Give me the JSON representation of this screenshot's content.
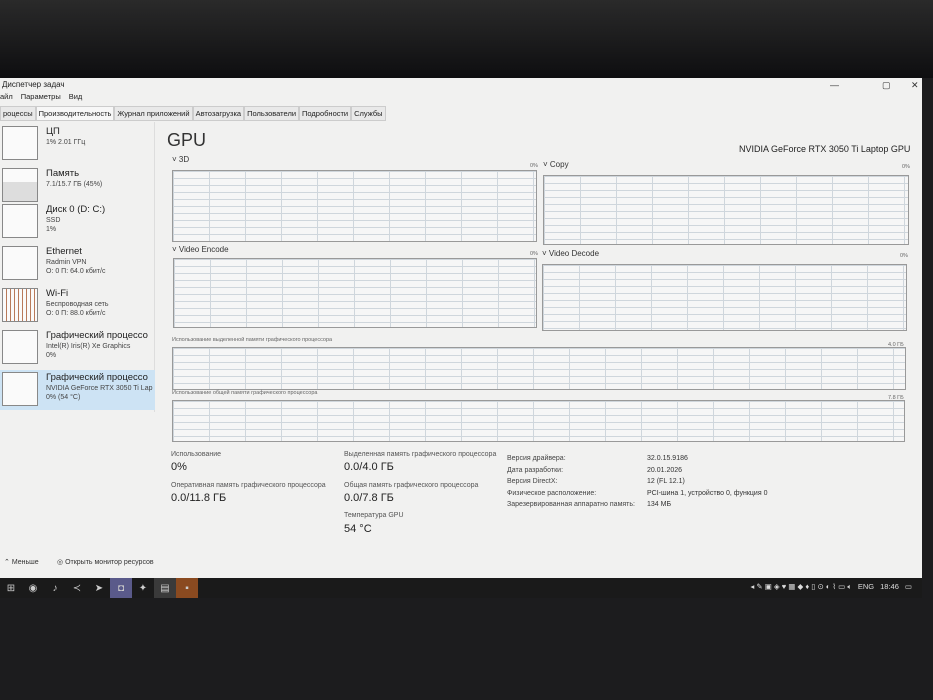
{
  "window": {
    "title": "Диспетчер задач",
    "controls": [
      "—",
      "▢",
      "✕"
    ]
  },
  "menu": [
    "айл",
    "Параметры",
    "Вид"
  ],
  "tabs": [
    "роцессы",
    "Производительность",
    "Журнал приложений",
    "Автозагрузка",
    "Пользователи",
    "Подробности",
    "Службы"
  ],
  "sidebar": [
    {
      "name": "ЦП",
      "l1": "1% 2.01 ГГц",
      "l2": ""
    },
    {
      "name": "Память",
      "l1": "7.1/15.7 ГБ (45%)",
      "l2": ""
    },
    {
      "name": "Диск 0 (D: C:)",
      "l1": "SSD",
      "l2": "1%"
    },
    {
      "name": "Ethernet",
      "l1": "Radmin VPN",
      "l2": "О: 0 П: 64.0 кбит/с"
    },
    {
      "name": "Wi-Fi",
      "l1": "Беспроводная сеть",
      "l2": "О: 0 П: 88.0 кбит/с"
    },
    {
      "name": "Графический процессо",
      "l1": "Intel(R) Iris(R) Xe Graphics",
      "l2": "0%"
    },
    {
      "name": "Графический процессо",
      "l1": "NVIDIA GeForce RTX 3050 Ti Lap",
      "l2": "0% (54 °C)"
    }
  ],
  "main": {
    "title": "GPU",
    "gpu_name": "NVIDIA GeForce RTX 3050 Ti Laptop GPU",
    "charts": {
      "d3": "3D",
      "copy": "Copy",
      "enc": "Video Encode",
      "dec": "Video Decode",
      "pct": "0%",
      "mem_ded": "Использование выделенной памяти графического процессора",
      "mem_ded_max": "4.0 ГБ",
      "mem_sh": "Использование общей памяти графического процессора",
      "mem_sh_max": "7.8 ГБ"
    },
    "stats": {
      "usage_l": "Использование",
      "usage": "0%",
      "ram_l": "Оперативная память графического процессора",
      "ram": "0.0/11.8 ГБ",
      "ded_l": "Выделенная память графического процессора",
      "ded": "0.0/4.0 ГБ",
      "sh_l": "Общая память графического процессора",
      "sh": "0.0/7.8 ГБ",
      "temp_l": "Температура GPU",
      "temp": "54 °C"
    },
    "details": [
      [
        "Версия драйвера:",
        "32.0.15.9186"
      ],
      [
        "Дата разработки:",
        "20.01.2026"
      ],
      [
        "Версия DirectX:",
        "12 (FL 12.1)"
      ],
      [
        "Физическое расположение:",
        "PCI-шина 1, устройство 0, функция 0"
      ],
      [
        "Зарезервированная аппаратно память:",
        "134 МБ"
      ]
    ]
  },
  "footer": {
    "less": "Меньше",
    "monitor": "Открыть монитор ресурсов"
  },
  "tray": {
    "lang": "ENG",
    "time": "18:46"
  }
}
